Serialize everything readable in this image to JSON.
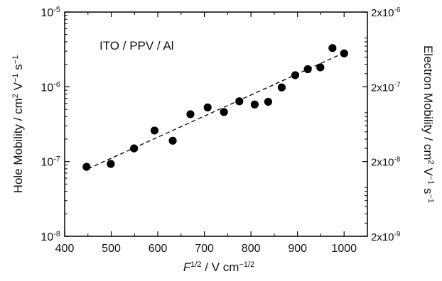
{
  "chart_data": {
    "type": "scatter",
    "title": "",
    "annotation": "ITO / PPV / Al",
    "xlabel": {
      "base": "F",
      "sup": "1/2",
      "unit": "/ V cm",
      "unit_sup": "−1/2"
    },
    "ylabel_left": {
      "main": "Hole Mobility / cm",
      "sup1": "2",
      "mid": " V",
      "sup2": "−1",
      "end": " s",
      "sup3": "−1"
    },
    "ylabel_right": {
      "main": "Electron Mobility / cm",
      "sup1": "2",
      "mid": " V",
      "sup2": "−1",
      "end": " s",
      "sup3": "−1"
    },
    "xlim": [
      400,
      1050
    ],
    "x_ticks": [
      400,
      500,
      600,
      700,
      800,
      900,
      1000
    ],
    "x_tick_labels": [
      "400",
      "500",
      "600",
      "700",
      "800",
      "900",
      "1000"
    ],
    "y_scale": "log",
    "ylim": [
      1e-08,
      1e-05
    ],
    "y_ticks": [
      1e-08,
      1e-07,
      1e-06,
      1e-05
    ],
    "y_tick_labels": [
      {
        "base": "10",
        "exp": "-8"
      },
      {
        "base": "10",
        "exp": "-7"
      },
      {
        "base": "10",
        "exp": "-6"
      },
      {
        "base": "10",
        "exp": "-5"
      }
    ],
    "y2_scale": "log",
    "y2lim": [
      2e-09,
      2e-06
    ],
    "y2_ticks": [
      2e-09,
      2e-08,
      2e-07,
      2e-06
    ],
    "y2_tick_labels": [
      {
        "base": "2x10",
        "exp": "-9"
      },
      {
        "base": "2x10",
        "exp": "-8"
      },
      {
        "base": "2x10",
        "exp": "-7"
      },
      {
        "base": "2x10",
        "exp": "-6"
      }
    ],
    "grid": false,
    "legend": "none",
    "series": [
      {
        "marker": "filled-circle",
        "color": "#000000",
        "x": [
          447,
          499,
          549,
          593,
          632,
          670,
          707,
          742,
          775,
          808,
          837,
          866,
          895,
          922,
          949,
          975,
          1000
        ],
        "y": [
          8.5e-08,
          9.3e-08,
          1.5e-07,
          2.6e-07,
          1.9e-07,
          4.3e-07,
          5.3e-07,
          4.6e-07,
          6.4e-07,
          5.8e-07,
          6.3e-07,
          9.8e-07,
          1.43e-06,
          1.72e-06,
          1.82e-06,
          3.3e-06,
          2.8e-06
        ]
      }
    ],
    "fit_line": {
      "style": "dashed",
      "color": "#000000",
      "x": [
        450,
        1000
      ],
      "y": [
        8e-08,
        2.85e-06
      ]
    }
  }
}
